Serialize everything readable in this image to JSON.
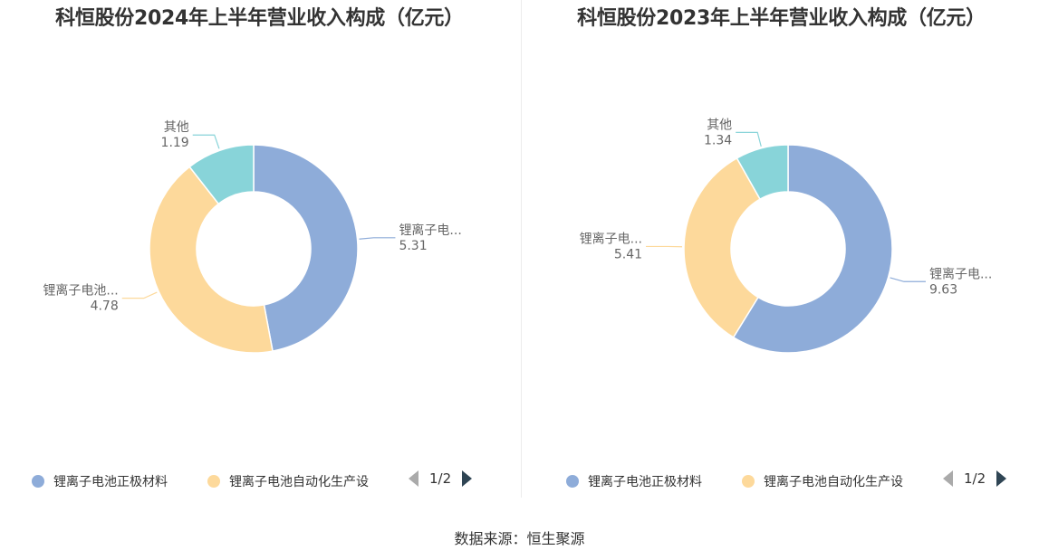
{
  "source": "数据来源：恒生聚源",
  "colors": {
    "series": [
      "#8eacd9",
      "#fdd99b",
      "#88d4d9"
    ]
  },
  "legend": {
    "items": [
      "锂离子电池正极材料",
      "锂离子电池自动化生产设"
    ],
    "page": "1/2",
    "prev_icon": "triangle-left",
    "next_icon": "triangle-right"
  },
  "chart_data": [
    {
      "type": "pie",
      "title": "科恒股份2024年上半年营业收入构成（亿元）",
      "categories": [
        "锂离子电池正极材料",
        "锂离子电池自动化生产设备",
        "其他"
      ],
      "values": [
        5.31,
        4.78,
        1.19
      ],
      "labels": [
        {
          "name": "锂离子电...",
          "value": "5.31"
        },
        {
          "name": "锂离子电池...",
          "value": "4.78"
        },
        {
          "name": "其他",
          "value": "1.19"
        }
      ]
    },
    {
      "type": "pie",
      "title": "科恒股份2023年上半年营业收入构成（亿元）",
      "categories": [
        "锂离子电池正极材料",
        "锂离子电池自动化生产设备",
        "其他"
      ],
      "values": [
        9.63,
        5.41,
        1.34
      ],
      "labels": [
        {
          "name": "锂离子电...",
          "value": "9.63"
        },
        {
          "name": "锂离子电...",
          "value": "5.41"
        },
        {
          "name": "其他",
          "value": "1.34"
        }
      ]
    }
  ]
}
